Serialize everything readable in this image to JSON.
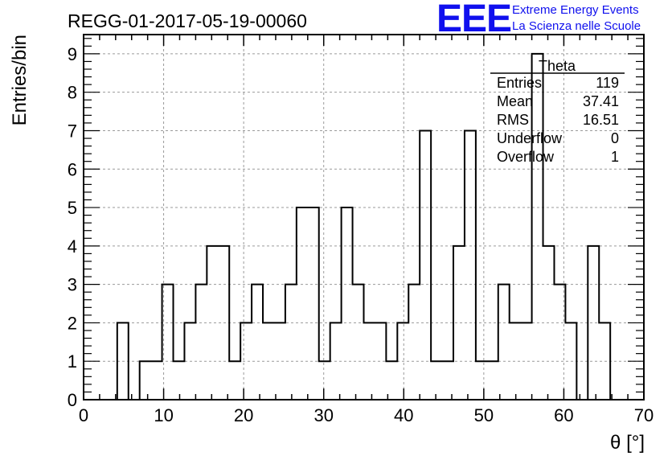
{
  "title": "REGG-01-2017-05-19-00060",
  "logo": {
    "text": "EEE",
    "line1": "Extreme Energy Events",
    "line2": "La Scienza nelle Scuole",
    "color": "#1010ee"
  },
  "stats": {
    "name": "Theta",
    "rows": [
      {
        "label": "Entries",
        "value": "119"
      },
      {
        "label": "Mean",
        "value": "37.41"
      },
      {
        "label": "RMS",
        "value": "16.51"
      },
      {
        "label": "Underflow",
        "value": "0"
      },
      {
        "label": "Overflow",
        "value": "1"
      }
    ]
  },
  "chart_data": {
    "type": "bar",
    "style": "step histogram",
    "xlabel": "θ [°]",
    "ylabel": "Entries/bin",
    "xlim": [
      0,
      70
    ],
    "ylim": [
      0,
      9.5
    ],
    "bin_width": 1.4,
    "bin_start": 0,
    "x_ticks": [
      0,
      10,
      20,
      30,
      40,
      50,
      60,
      70
    ],
    "y_ticks": [
      0,
      1,
      2,
      3,
      4,
      5,
      6,
      7,
      8,
      9
    ],
    "grid": true,
    "line_color": "#000000",
    "values": [
      0,
      0,
      0,
      2,
      0,
      1,
      1,
      3,
      1,
      2,
      3,
      4,
      4,
      1,
      2,
      3,
      2,
      2,
      3,
      5,
      5,
      1,
      2,
      5,
      3,
      2,
      2,
      1,
      2,
      3,
      7,
      1,
      1,
      4,
      7,
      1,
      1,
      3,
      2,
      2,
      9,
      4,
      3,
      2,
      0,
      4,
      2,
      0,
      0,
      0
    ]
  }
}
